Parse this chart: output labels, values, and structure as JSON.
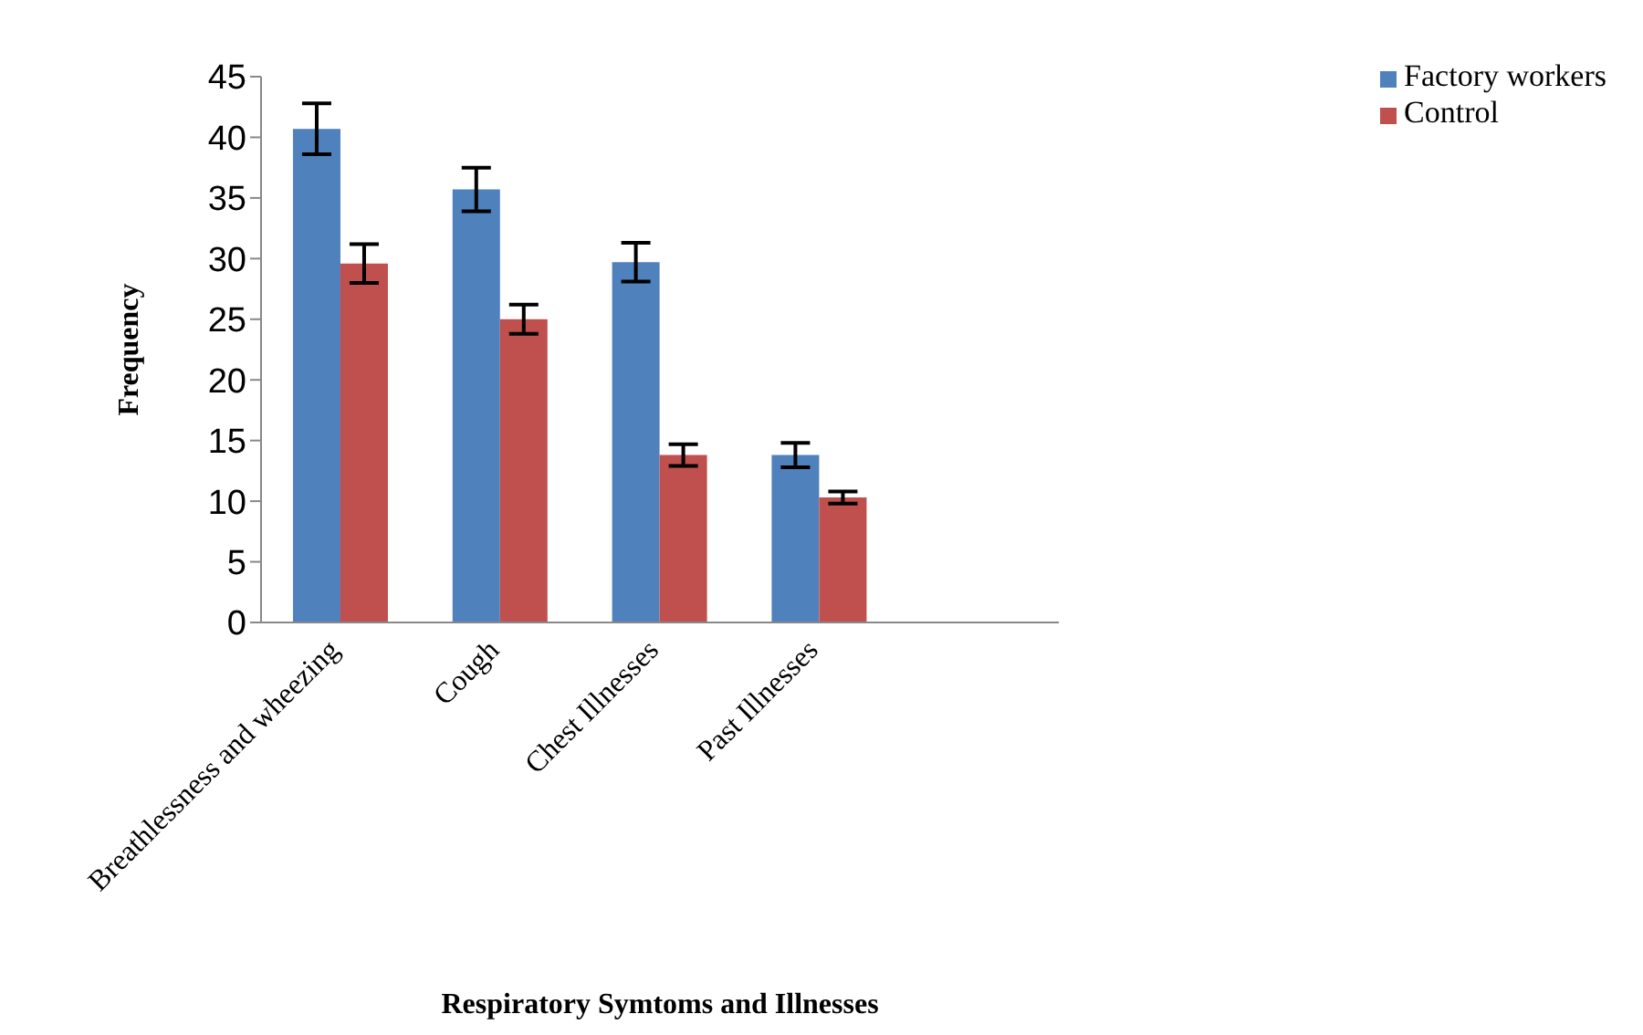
{
  "chart_data": {
    "type": "bar",
    "xlabel": "Respiratory Symtoms and Illnesses",
    "ylabel": "Frequency",
    "categories": [
      "Breathlessness and wheezing",
      "Cough",
      "Chest Illnesses",
      "Past Illnesses",
      null
    ],
    "series": [
      {
        "name": "Factory workers",
        "color": "#4f81bd",
        "values": [
          40.7,
          35.7,
          29.7,
          13.8,
          null
        ],
        "errors": [
          2.1,
          1.8,
          1.6,
          1.0,
          null
        ]
      },
      {
        "name": "Control",
        "color": "#c0504d",
        "values": [
          29.6,
          25.0,
          13.8,
          10.3,
          null
        ],
        "errors": [
          1.6,
          1.2,
          0.9,
          0.5,
          null
        ]
      }
    ],
    "ylim": [
      0,
      45
    ],
    "yticks": [
      0,
      5,
      10,
      15,
      20,
      25,
      30,
      35,
      40,
      45
    ],
    "legend": "top right"
  }
}
